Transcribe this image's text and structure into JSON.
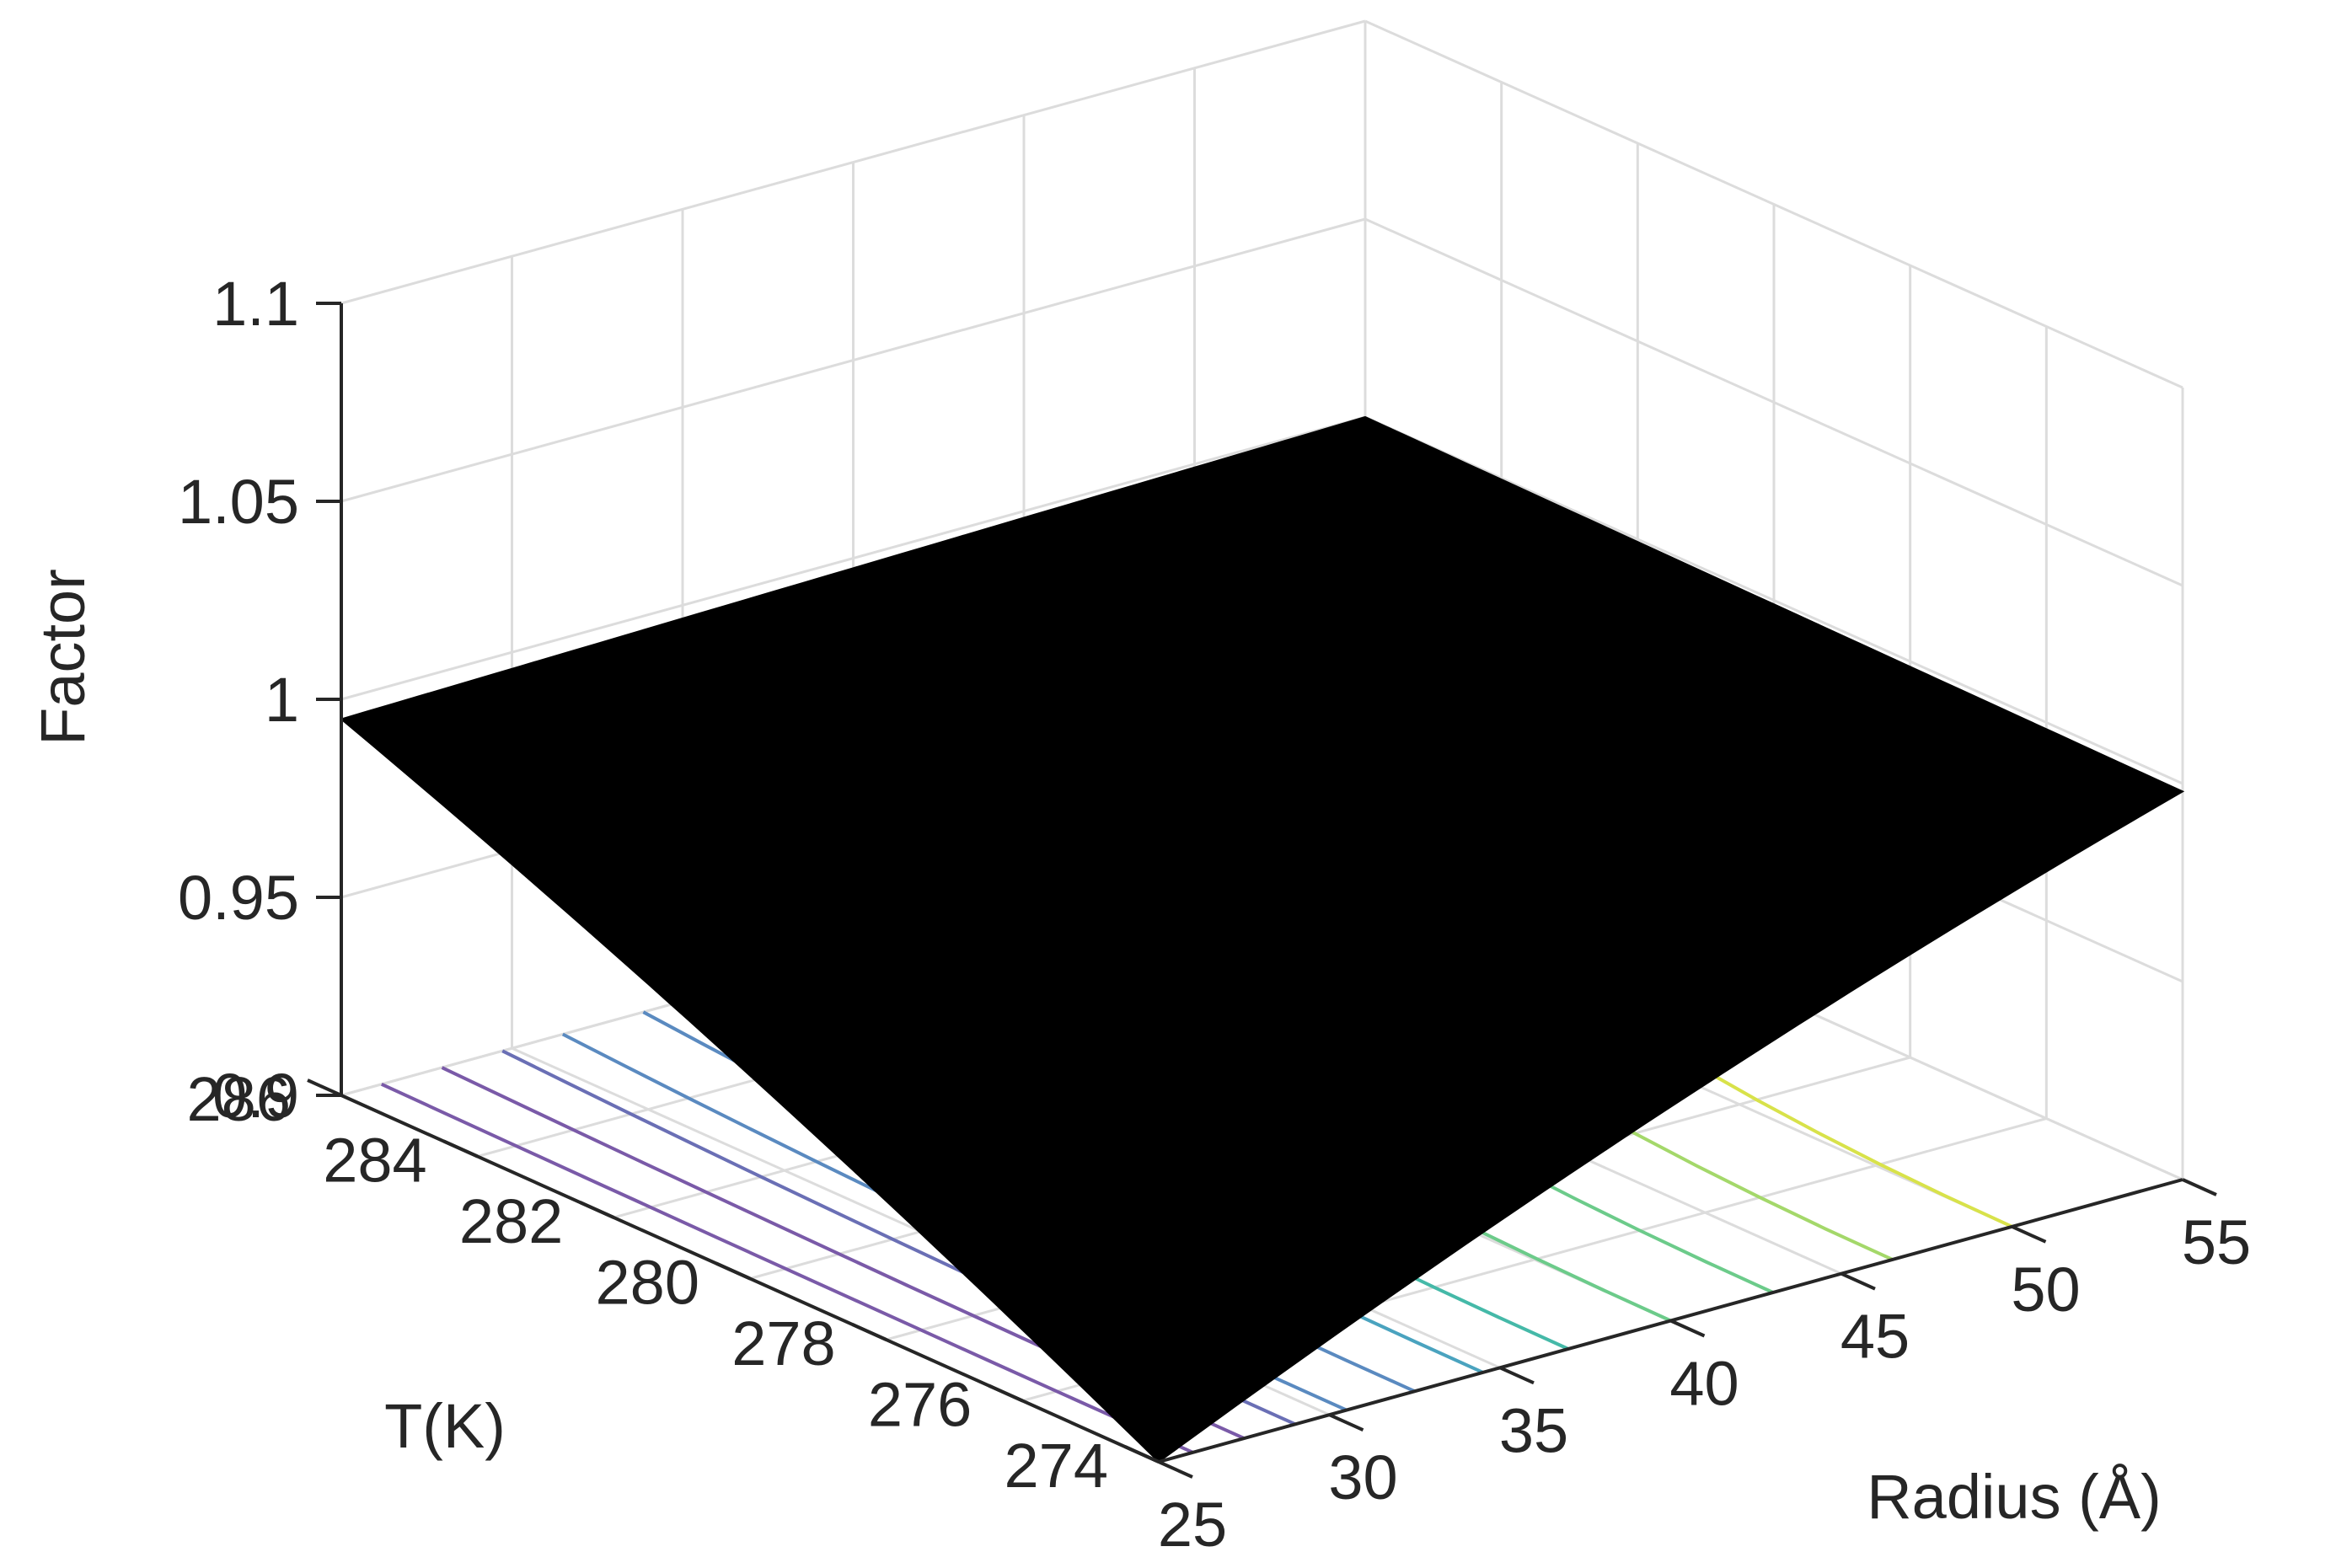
{
  "chart_data": {
    "type": "surface3d",
    "xlabel": "Radius (Å)",
    "ylabel": "T(K)",
    "zlabel": "Factor",
    "x_ticks": [
      "25",
      "30",
      "35",
      "40",
      "45",
      "50",
      "55"
    ],
    "y_ticks": [
      "274",
      "276",
      "278",
      "280",
      "282",
      "284",
      "286"
    ],
    "z_ticks": [
      "0.9",
      "0.95",
      "1",
      "1.05",
      "1.1"
    ],
    "xlim": [
      25,
      55
    ],
    "ylim": [
      274,
      286
    ],
    "zlim": [
      0.9,
      1.1
    ],
    "grid": true,
    "surface": {
      "color": "#000000",
      "corners": [
        {
          "radius": 25,
          "T": 274,
          "factor": 0.9
        },
        {
          "radius": 25,
          "T": 286,
          "factor": 0.995
        },
        {
          "radius": 55,
          "T": 274,
          "factor": 0.998
        },
        {
          "radius": 55,
          "T": 286,
          "factor": 1.0
        }
      ]
    },
    "contours": {
      "colormap": [
        "#7a5aa8",
        "#6a6fb5",
        "#5a8ac0",
        "#4aa3bf",
        "#45b9a8",
        "#6ccb8a",
        "#a4d86a",
        "#d8e24a"
      ],
      "radius_positions": [
        26,
        27.5,
        29,
        30.5,
        32.5,
        34.5,
        37,
        40,
        43,
        46.5,
        50
      ]
    }
  }
}
